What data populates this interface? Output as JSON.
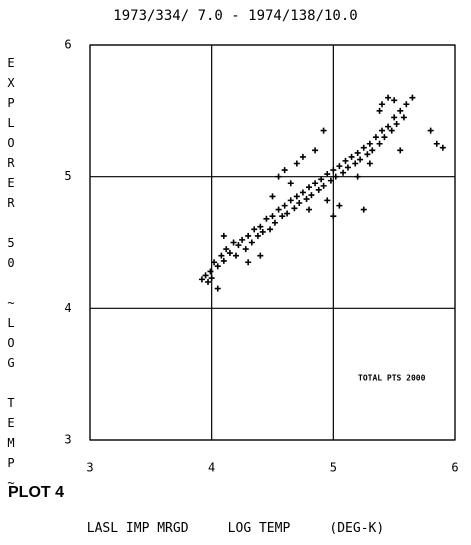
{
  "chart_data": {
    "type": "scatter",
    "title": "1973/334/ 7.0 - 1974/138/10.0",
    "y_label": "EXPLORER 50 ~LOG TEMP~",
    "x_label": "LASL IMP MRGD     LOG TEMP     (DEG-K)",
    "plot_label": "PLOT 4",
    "annotation": "TOTAL PTS 2000",
    "color": "#000000",
    "grid": true,
    "xlim": [
      3,
      6
    ],
    "xticks": [
      3,
      4,
      5,
      6
    ],
    "ylim": [
      3,
      6
    ],
    "yticks": [
      3,
      4,
      5,
      6
    ],
    "x": [
      3.92,
      3.95,
      3.97,
      3.99,
      4.0,
      4.02,
      4.05,
      4.08,
      4.1,
      4.12,
      4.15,
      4.18,
      4.2,
      4.22,
      4.25,
      4.28,
      4.3,
      4.33,
      4.35,
      4.38,
      4.4,
      4.42,
      4.45,
      4.48,
      4.5,
      4.52,
      4.55,
      4.58,
      4.6,
      4.62,
      4.65,
      4.68,
      4.7,
      4.72,
      4.75,
      4.78,
      4.8,
      4.82,
      4.85,
      4.88,
      4.9,
      4.92,
      4.95,
      4.98,
      5.0,
      5.02,
      5.05,
      5.08,
      5.1,
      5.12,
      5.15,
      5.18,
      5.2,
      5.22,
      5.25,
      5.28,
      5.3,
      5.32,
      5.35,
      5.38,
      5.4,
      5.42,
      5.45,
      5.48,
      5.5,
      5.52,
      5.55,
      5.58,
      5.6,
      5.4,
      5.38,
      5.5,
      4.55,
      4.5,
      4.6,
      4.65,
      4.7,
      4.75,
      4.85,
      4.92,
      5.05,
      5.25,
      5.55,
      5.8,
      5.85,
      5.9,
      5.0,
      4.05,
      4.1,
      4.4,
      4.3,
      5.65,
      5.45,
      4.8,
      5.2,
      5.3,
      4.95
    ],
    "values": [
      4.22,
      4.25,
      4.2,
      4.28,
      4.23,
      4.35,
      4.32,
      4.4,
      4.36,
      4.45,
      4.42,
      4.5,
      4.4,
      4.48,
      4.52,
      4.45,
      4.55,
      4.5,
      4.6,
      4.55,
      4.62,
      4.58,
      4.68,
      4.6,
      4.7,
      4.65,
      4.75,
      4.7,
      4.78,
      4.72,
      4.82,
      4.76,
      4.85,
      4.8,
      4.88,
      4.83,
      4.92,
      4.86,
      4.95,
      4.9,
      4.98,
      4.93,
      5.02,
      4.97,
      5.05,
      5.0,
      5.08,
      5.03,
      5.12,
      5.07,
      5.15,
      5.1,
      5.18,
      5.13,
      5.22,
      5.17,
      5.25,
      5.2,
      5.3,
      5.25,
      5.35,
      5.3,
      5.38,
      5.35,
      5.45,
      5.4,
      5.5,
      5.45,
      5.55,
      5.55,
      5.5,
      5.58,
      5.0,
      4.85,
      5.05,
      4.95,
      5.1,
      5.15,
      5.2,
      5.35,
      4.78,
      4.75,
      5.2,
      5.35,
      5.25,
      5.22,
      4.7,
      4.15,
      4.55,
      4.4,
      4.35,
      5.6,
      5.6,
      4.75,
      5.0,
      5.1,
      4.82
    ]
  }
}
